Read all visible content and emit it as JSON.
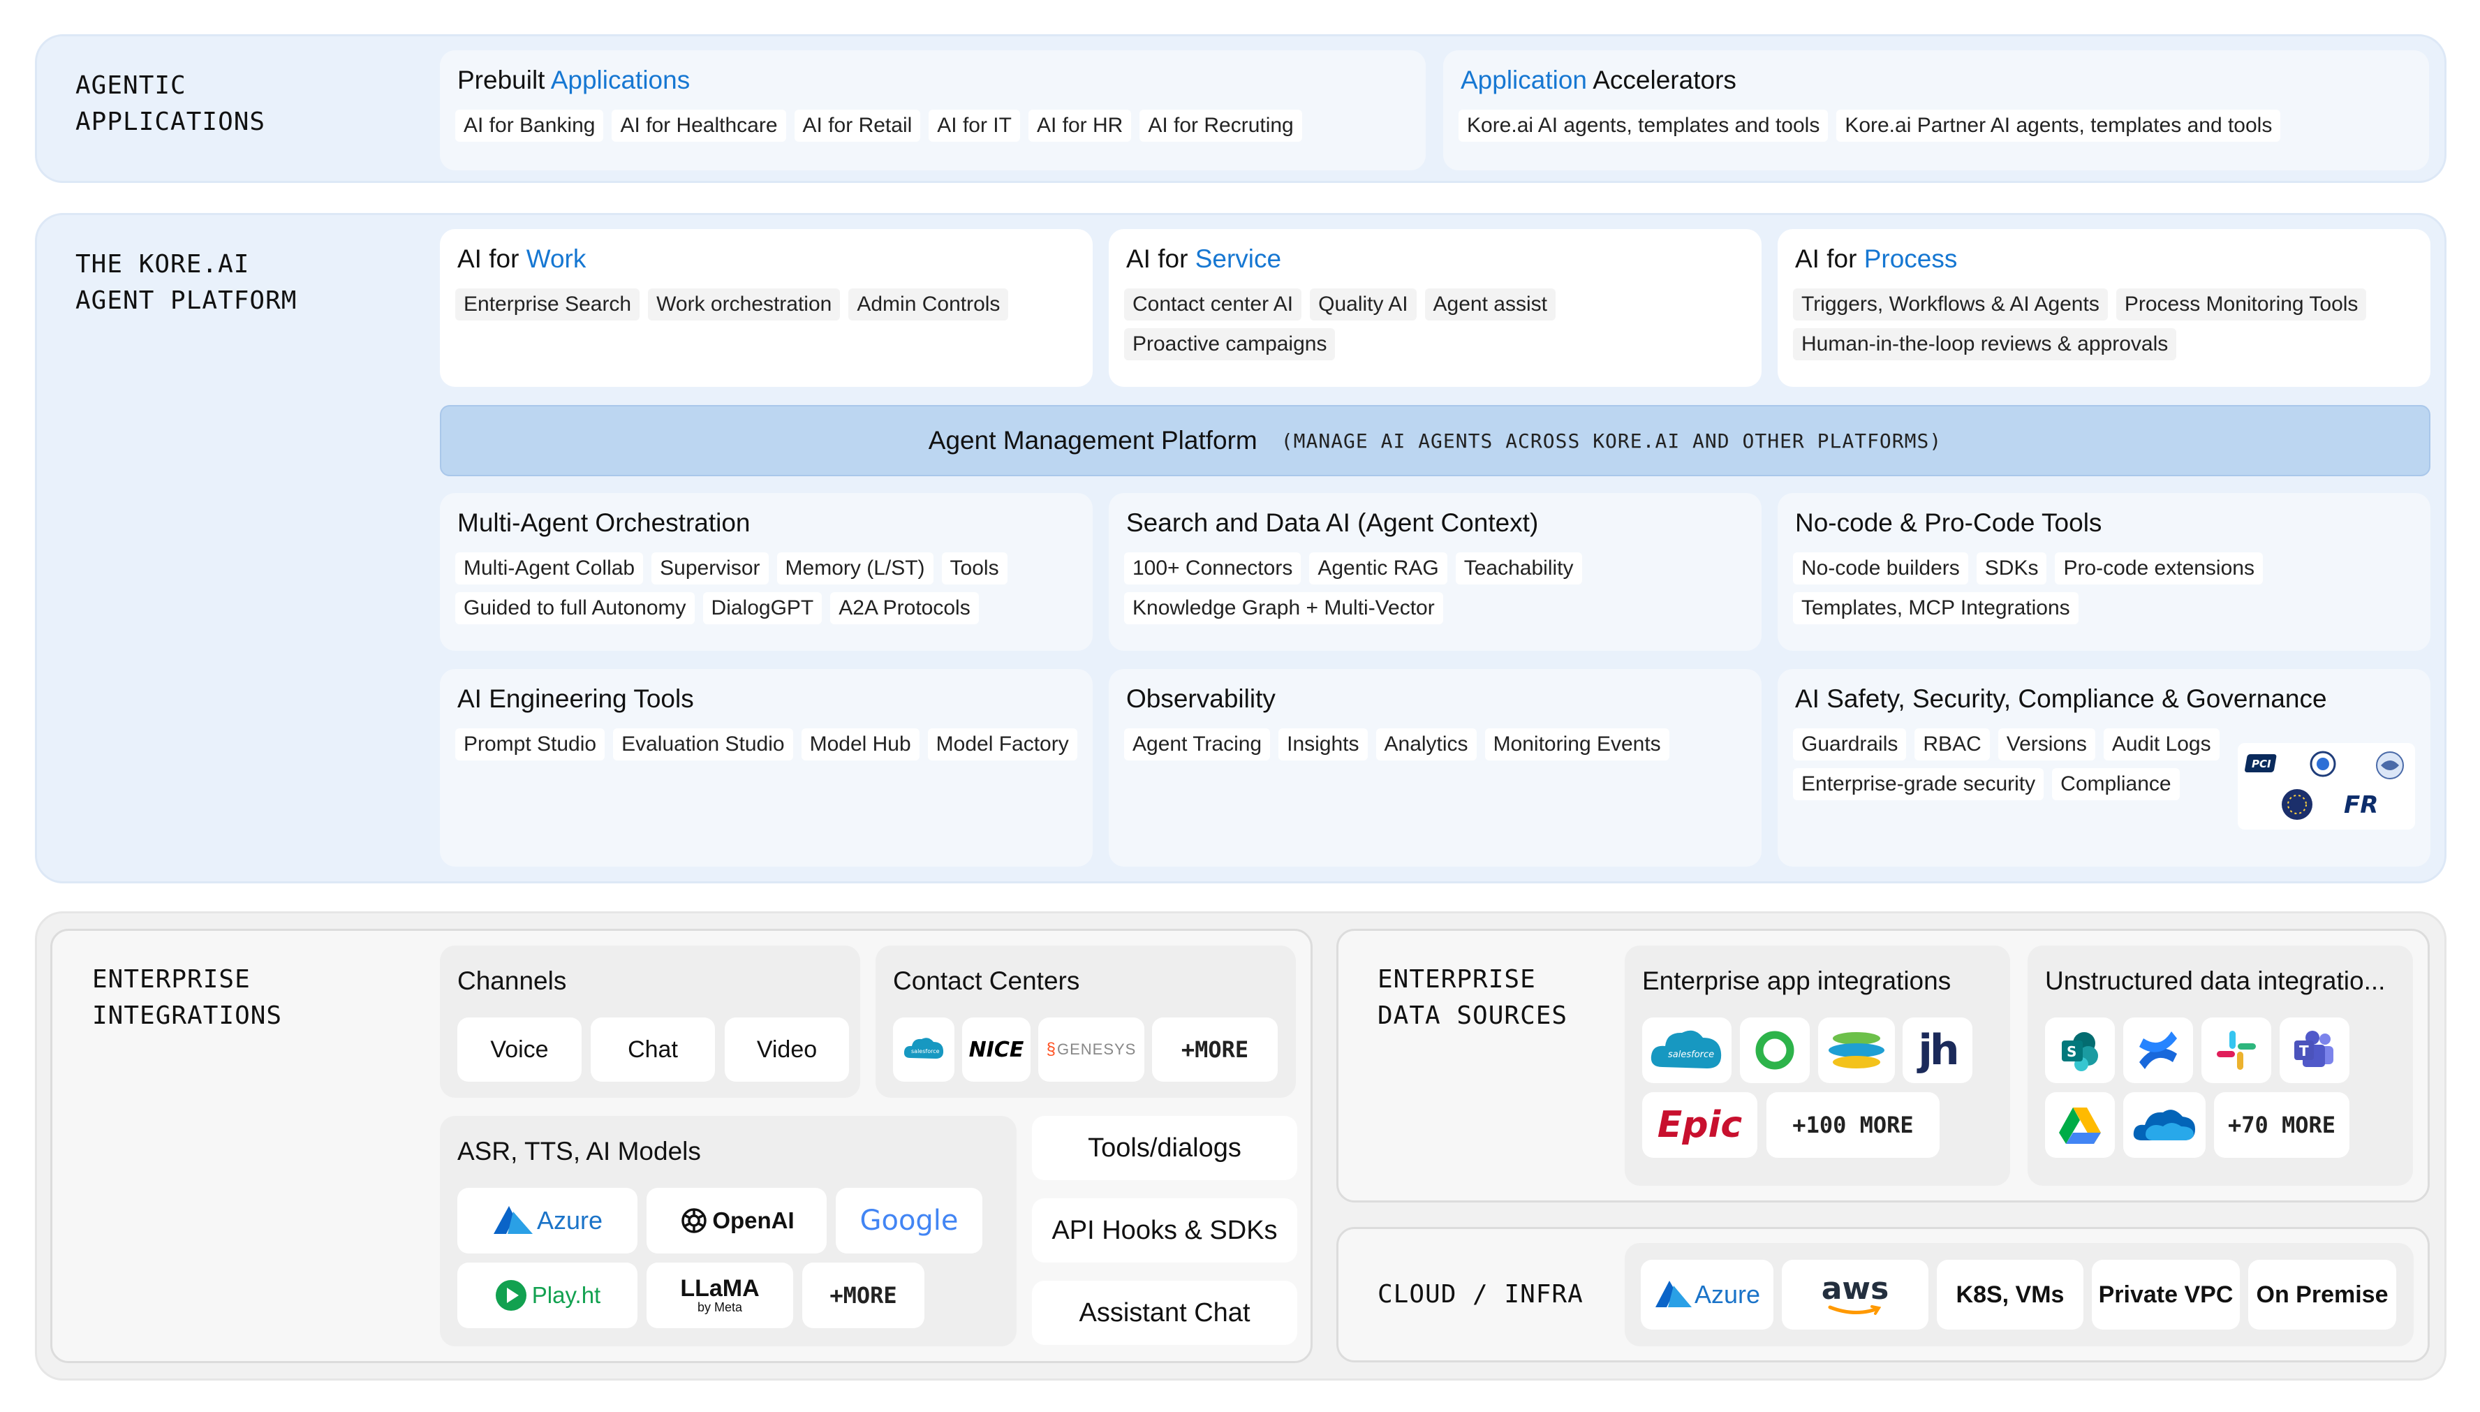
{
  "agentic": {
    "label": "AGENTIC\nAPPLICATIONS",
    "prebuilt": {
      "title_a": "Prebuilt ",
      "title_b": "Applications",
      "chips": [
        "AI for Banking",
        "AI for Healthcare",
        "AI for Retail",
        "AI for IT",
        "AI for HR",
        "AI for Recruting"
      ]
    },
    "accelerators": {
      "title_a": "Application",
      "title_b": " Accelerators",
      "chips": [
        "Kore.ai AI agents, templates and tools",
        "Kore.ai Partner AI agents, templates and tools"
      ]
    }
  },
  "platform": {
    "label": "THE KORE.AI\nAGENT PLATFORM",
    "work": {
      "title_a": "AI for ",
      "title_b": "Work",
      "chips": [
        "Enterprise Search",
        "Work orchestration",
        "Admin Controls"
      ]
    },
    "service": {
      "title_a": "AI for ",
      "title_b": "Service",
      "chips": [
        "Contact center AI",
        "Quality AI",
        "Agent assist",
        "Proactive campaigns"
      ]
    },
    "process": {
      "title_a": "AI for ",
      "title_b": "Process",
      "chips": [
        "Triggers, Workflows  & AI Agents",
        "Process Monitoring Tools",
        "Human-in-the-loop reviews & approvals"
      ]
    },
    "amp": {
      "title": "Agent Management Platform",
      "subtitle": "(MANAGE AI AGENTS ACROSS KORE.AI AND OTHER PLATFORMS)"
    },
    "orchestration": {
      "title": "Multi-Agent Orchestration",
      "chips": [
        "Multi-Agent Collab",
        "Supervisor",
        "Memory (L/ST)",
        "Tools",
        "Guided to full Autonomy",
        "DialogGPT",
        "A2A Protocols"
      ]
    },
    "search": {
      "title": "Search and Data AI (Agent Context)",
      "chips": [
        "100+ Connectors",
        "Agentic RAG",
        "Teachability",
        "Knowledge Graph + Multi-Vector"
      ]
    },
    "nocode": {
      "title": "No-code & Pro-Code Tools",
      "chips": [
        "No-code builders",
        "SDKs",
        "Pro-code extensions",
        "Templates, MCP Integrations"
      ]
    },
    "engineering": {
      "title": "AI Engineering Tools",
      "chips": [
        "Prompt Studio",
        "Evaluation Studio",
        "Model Hub",
        "Model Factory"
      ]
    },
    "observability": {
      "title": "Observability",
      "chips": [
        "Agent Tracing",
        "Insights",
        "Analytics",
        "Monitoring Events"
      ]
    },
    "safety": {
      "title": "AI Safety, Security, Compliance  & Governance",
      "chips": [
        "Guardrails",
        "RBAC",
        "Versions",
        "Audit Logs",
        "Enterprise-grade security",
        "Compliance"
      ],
      "badges": [
        "PCI",
        "FR"
      ]
    }
  },
  "integrations": {
    "label": "ENTERPRISE\nINTEGRATIONS",
    "channels": {
      "title": "Channels",
      "items": [
        "Voice",
        "Chat",
        "Video"
      ]
    },
    "contact_centers": {
      "title": "Contact Centers",
      "logos": [
        "salesforce",
        "NICE",
        "GENESYS"
      ],
      "more": "+MORE"
    },
    "models": {
      "title": "ASR, TTS, AI Models",
      "logos": [
        "Azure",
        "OpenAI",
        "Google",
        "Play.ht",
        "LLaMA",
        "by Meta"
      ],
      "more": "+MORE"
    },
    "buttons": [
      "Tools/dialogs",
      "API Hooks & SDKs",
      "Assistant Chat"
    ]
  },
  "data_sources": {
    "label": "ENTERPRISE\nDATA SOURCES",
    "apps": {
      "title": "Enterprise app integrations",
      "logos": [
        "salesforce",
        "jh",
        "Epic"
      ],
      "more": "+100 MORE"
    },
    "unstructured": {
      "title": "Unstructured data integratio...",
      "more": "+70 MORE"
    }
  },
  "cloud": {
    "label": "CLOUD / INFRA",
    "items": [
      "Azure",
      "aws",
      "K8S, VMs",
      "Private VPC",
      "On Premise"
    ]
  },
  "colors": {
    "accent": "#1677d2",
    "band_blue": "#e9f1fb",
    "amp_bar": "#bcd6f1",
    "band_grey": "#f1f1f1"
  }
}
